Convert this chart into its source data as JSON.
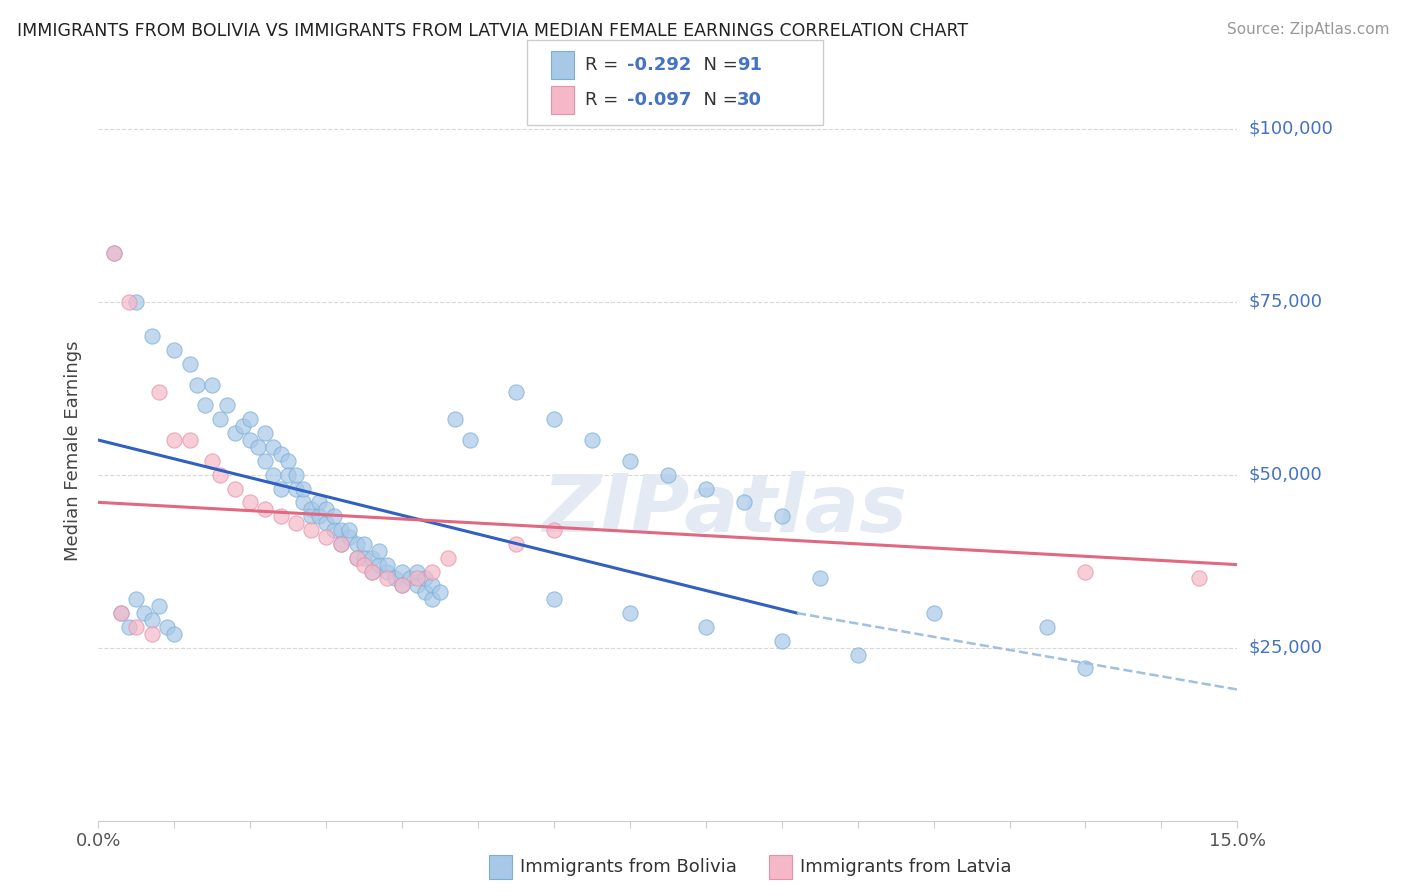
{
  "title": "IMMIGRANTS FROM BOLIVIA VS IMMIGRANTS FROM LATVIA MEDIAN FEMALE EARNINGS CORRELATION CHART",
  "source": "Source: ZipAtlas.com",
  "ylabel": "Median Female Earnings",
  "xlim": [
    0.0,
    0.15
  ],
  "ylim": [
    0,
    107000
  ],
  "bolivia_color": "#a8c8e8",
  "bolivia_edge_color": "#7bafd4",
  "latvia_color": "#f5b8c8",
  "latvia_edge_color": "#e890a8",
  "bolivia_line_color": "#3060c0",
  "latvia_line_color": "#e06880",
  "trendline_dash_color": "#a0c0e0",
  "right_label_color": "#4472c4",
  "background_color": "#ffffff",
  "grid_color": "#d8d8d8",
  "watermark_color": "#e4eaf4",
  "bolivia_trend": [
    0.0,
    55000,
    0.092,
    30000
  ],
  "bolivia_dash": [
    0.092,
    30000,
    0.155,
    18000
  ],
  "latvia_trend": [
    0.0,
    46000,
    0.15,
    37000
  ],
  "bolivia_scatter": [
    [
      0.002,
      82000
    ],
    [
      0.005,
      75000
    ],
    [
      0.007,
      70000
    ],
    [
      0.01,
      68000
    ],
    [
      0.012,
      66000
    ],
    [
      0.013,
      63000
    ],
    [
      0.014,
      60000
    ],
    [
      0.015,
      63000
    ],
    [
      0.016,
      58000
    ],
    [
      0.017,
      60000
    ],
    [
      0.018,
      56000
    ],
    [
      0.019,
      57000
    ],
    [
      0.02,
      55000
    ],
    [
      0.02,
      58000
    ],
    [
      0.021,
      54000
    ],
    [
      0.022,
      56000
    ],
    [
      0.022,
      52000
    ],
    [
      0.023,
      54000
    ],
    [
      0.023,
      50000
    ],
    [
      0.024,
      53000
    ],
    [
      0.024,
      48000
    ],
    [
      0.025,
      52000
    ],
    [
      0.025,
      50000
    ],
    [
      0.026,
      48000
    ],
    [
      0.026,
      50000
    ],
    [
      0.027,
      46000
    ],
    [
      0.027,
      48000
    ],
    [
      0.028,
      45000
    ],
    [
      0.028,
      44000
    ],
    [
      0.029,
      44000
    ],
    [
      0.029,
      46000
    ],
    [
      0.03,
      43000
    ],
    [
      0.03,
      45000
    ],
    [
      0.031,
      42000
    ],
    [
      0.031,
      44000
    ],
    [
      0.032,
      42000
    ],
    [
      0.032,
      40000
    ],
    [
      0.033,
      41000
    ],
    [
      0.033,
      42000
    ],
    [
      0.034,
      40000
    ],
    [
      0.034,
      38000
    ],
    [
      0.035,
      40000
    ],
    [
      0.035,
      38000
    ],
    [
      0.036,
      38000
    ],
    [
      0.036,
      36000
    ],
    [
      0.037,
      37000
    ],
    [
      0.037,
      39000
    ],
    [
      0.038,
      36000
    ],
    [
      0.038,
      37000
    ],
    [
      0.039,
      35000
    ],
    [
      0.04,
      36000
    ],
    [
      0.04,
      34000
    ],
    [
      0.041,
      35000
    ],
    [
      0.042,
      34000
    ],
    [
      0.042,
      36000
    ],
    [
      0.043,
      33000
    ],
    [
      0.043,
      35000
    ],
    [
      0.044,
      32000
    ],
    [
      0.044,
      34000
    ],
    [
      0.045,
      33000
    ],
    [
      0.047,
      58000
    ],
    [
      0.049,
      55000
    ],
    [
      0.055,
      62000
    ],
    [
      0.06,
      58000
    ],
    [
      0.065,
      55000
    ],
    [
      0.07,
      52000
    ],
    [
      0.075,
      50000
    ],
    [
      0.08,
      48000
    ],
    [
      0.085,
      46000
    ],
    [
      0.09,
      44000
    ],
    [
      0.095,
      35000
    ],
    [
      0.11,
      30000
    ],
    [
      0.125,
      28000
    ],
    [
      0.003,
      30000
    ],
    [
      0.004,
      28000
    ],
    [
      0.005,
      32000
    ],
    [
      0.006,
      30000
    ],
    [
      0.007,
      29000
    ],
    [
      0.008,
      31000
    ],
    [
      0.009,
      28000
    ],
    [
      0.01,
      27000
    ],
    [
      0.06,
      32000
    ],
    [
      0.07,
      30000
    ],
    [
      0.08,
      28000
    ],
    [
      0.09,
      26000
    ],
    [
      0.1,
      24000
    ],
    [
      0.13,
      22000
    ]
  ],
  "latvia_scatter": [
    [
      0.002,
      82000
    ],
    [
      0.004,
      75000
    ],
    [
      0.008,
      62000
    ],
    [
      0.01,
      55000
    ],
    [
      0.012,
      55000
    ],
    [
      0.015,
      52000
    ],
    [
      0.016,
      50000
    ],
    [
      0.018,
      48000
    ],
    [
      0.02,
      46000
    ],
    [
      0.022,
      45000
    ],
    [
      0.024,
      44000
    ],
    [
      0.026,
      43000
    ],
    [
      0.028,
      42000
    ],
    [
      0.03,
      41000
    ],
    [
      0.032,
      40000
    ],
    [
      0.034,
      38000
    ],
    [
      0.035,
      37000
    ],
    [
      0.036,
      36000
    ],
    [
      0.038,
      35000
    ],
    [
      0.04,
      34000
    ],
    [
      0.042,
      35000
    ],
    [
      0.044,
      36000
    ],
    [
      0.046,
      38000
    ],
    [
      0.055,
      40000
    ],
    [
      0.06,
      42000
    ],
    [
      0.13,
      36000
    ],
    [
      0.145,
      35000
    ],
    [
      0.003,
      30000
    ],
    [
      0.005,
      28000
    ],
    [
      0.007,
      27000
    ]
  ]
}
